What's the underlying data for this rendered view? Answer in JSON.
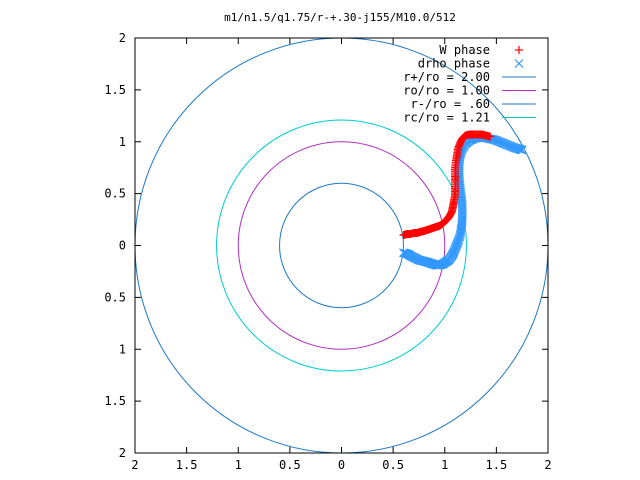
{
  "chart_data": {
    "type": "scatter",
    "title": "m1/n1.5/q1.75/r-+.30-j155/M10.0/512",
    "xlim": [
      -2,
      2
    ],
    "ylim": [
      -2,
      2
    ],
    "x_ticks": [
      -2,
      -1.5,
      -1,
      -0.5,
      0,
      0.5,
      1,
      1.5,
      2
    ],
    "y_ticks": [
      -2,
      -1.5,
      -1,
      -0.5,
      0,
      0.5,
      1,
      1.5,
      2
    ],
    "x_tick_labels": [
      "2",
      "1.5",
      "1",
      "0.5",
      "0",
      "0.5",
      "1",
      "1.5",
      "2"
    ],
    "y_tick_labels": [
      "2",
      "1.5",
      "1",
      "0.5",
      "0",
      "0.5",
      "1",
      "1.5",
      "2"
    ],
    "grid": false,
    "legend_position": "top-right",
    "series": [
      {
        "name": "W phase",
        "kind": "points",
        "marker": "plus",
        "color": "#ff0000",
        "points": [
          [
            0.6,
            0.1
          ],
          [
            0.63,
            0.11
          ],
          [
            0.66,
            0.11
          ],
          [
            0.7,
            0.12
          ],
          [
            0.73,
            0.12
          ],
          [
            0.76,
            0.13
          ],
          [
            0.8,
            0.14
          ],
          [
            0.83,
            0.15
          ],
          [
            0.86,
            0.16
          ],
          [
            0.89,
            0.17
          ],
          [
            0.92,
            0.18
          ],
          [
            0.95,
            0.19
          ],
          [
            0.98,
            0.21
          ],
          [
            1.0,
            0.23
          ],
          [
            1.03,
            0.26
          ],
          [
            1.05,
            0.29
          ],
          [
            1.07,
            0.33
          ],
          [
            1.08,
            0.38
          ],
          [
            1.09,
            0.43
          ],
          [
            1.1,
            0.49
          ],
          [
            1.1,
            0.55
          ],
          [
            1.1,
            0.62
          ],
          [
            1.1,
            0.68
          ],
          [
            1.1,
            0.75
          ],
          [
            1.11,
            0.82
          ],
          [
            1.12,
            0.88
          ],
          [
            1.13,
            0.94
          ],
          [
            1.15,
            0.99
          ],
          [
            1.17,
            1.03
          ],
          [
            1.2,
            1.06
          ],
          [
            1.24,
            1.07
          ],
          [
            1.28,
            1.07
          ],
          [
            1.32,
            1.07
          ],
          [
            1.36,
            1.07
          ],
          [
            1.4,
            1.06
          ],
          [
            1.44,
            1.05
          ]
        ]
      },
      {
        "name": "drho phase",
        "kind": "points",
        "marker": "x",
        "color": "#3399ff",
        "points": [
          [
            0.6,
            -0.07
          ],
          [
            0.64,
            -0.08
          ],
          [
            0.67,
            -0.1
          ],
          [
            0.71,
            -0.12
          ],
          [
            0.75,
            -0.14
          ],
          [
            0.79,
            -0.15
          ],
          [
            0.83,
            -0.16
          ],
          [
            0.86,
            -0.17
          ],
          [
            0.89,
            -0.18
          ],
          [
            0.92,
            -0.19
          ],
          [
            0.95,
            -0.19
          ],
          [
            0.98,
            -0.18
          ],
          [
            1.01,
            -0.16
          ],
          [
            1.04,
            -0.14
          ],
          [
            1.07,
            -0.1
          ],
          [
            1.09,
            -0.06
          ],
          [
            1.11,
            -0.01
          ],
          [
            1.13,
            0.04
          ],
          [
            1.15,
            0.1
          ],
          [
            1.16,
            0.17
          ],
          [
            1.17,
            0.24
          ],
          [
            1.17,
            0.32
          ],
          [
            1.17,
            0.4
          ],
          [
            1.16,
            0.48
          ],
          [
            1.15,
            0.56
          ],
          [
            1.14,
            0.64
          ],
          [
            1.14,
            0.72
          ],
          [
            1.14,
            0.8
          ],
          [
            1.15,
            0.87
          ],
          [
            1.17,
            0.93
          ],
          [
            1.2,
            0.98
          ],
          [
            1.24,
            1.01
          ],
          [
            1.28,
            1.03
          ],
          [
            1.33,
            1.04
          ],
          [
            1.38,
            1.04
          ],
          [
            1.43,
            1.03
          ],
          [
            1.48,
            1.02
          ],
          [
            1.53,
            1.0
          ],
          [
            1.58,
            0.98
          ],
          [
            1.63,
            0.96
          ],
          [
            1.68,
            0.94
          ],
          [
            1.72,
            0.93
          ],
          [
            1.75,
            0.92
          ]
        ]
      },
      {
        "name": "r+/ro = 2.00",
        "kind": "circle",
        "radius": 2.0,
        "color": "#1e78c8"
      },
      {
        "name": "ro/ro = 1.00",
        "kind": "circle",
        "radius": 1.0,
        "color": "#b030c0"
      },
      {
        "name": "r-/ro = .60",
        "kind": "circle",
        "radius": 0.6,
        "color": "#1e78c8"
      },
      {
        "name": "rc/ro = 1.21",
        "kind": "circle",
        "radius": 1.21,
        "color": "#00cccc"
      }
    ]
  }
}
